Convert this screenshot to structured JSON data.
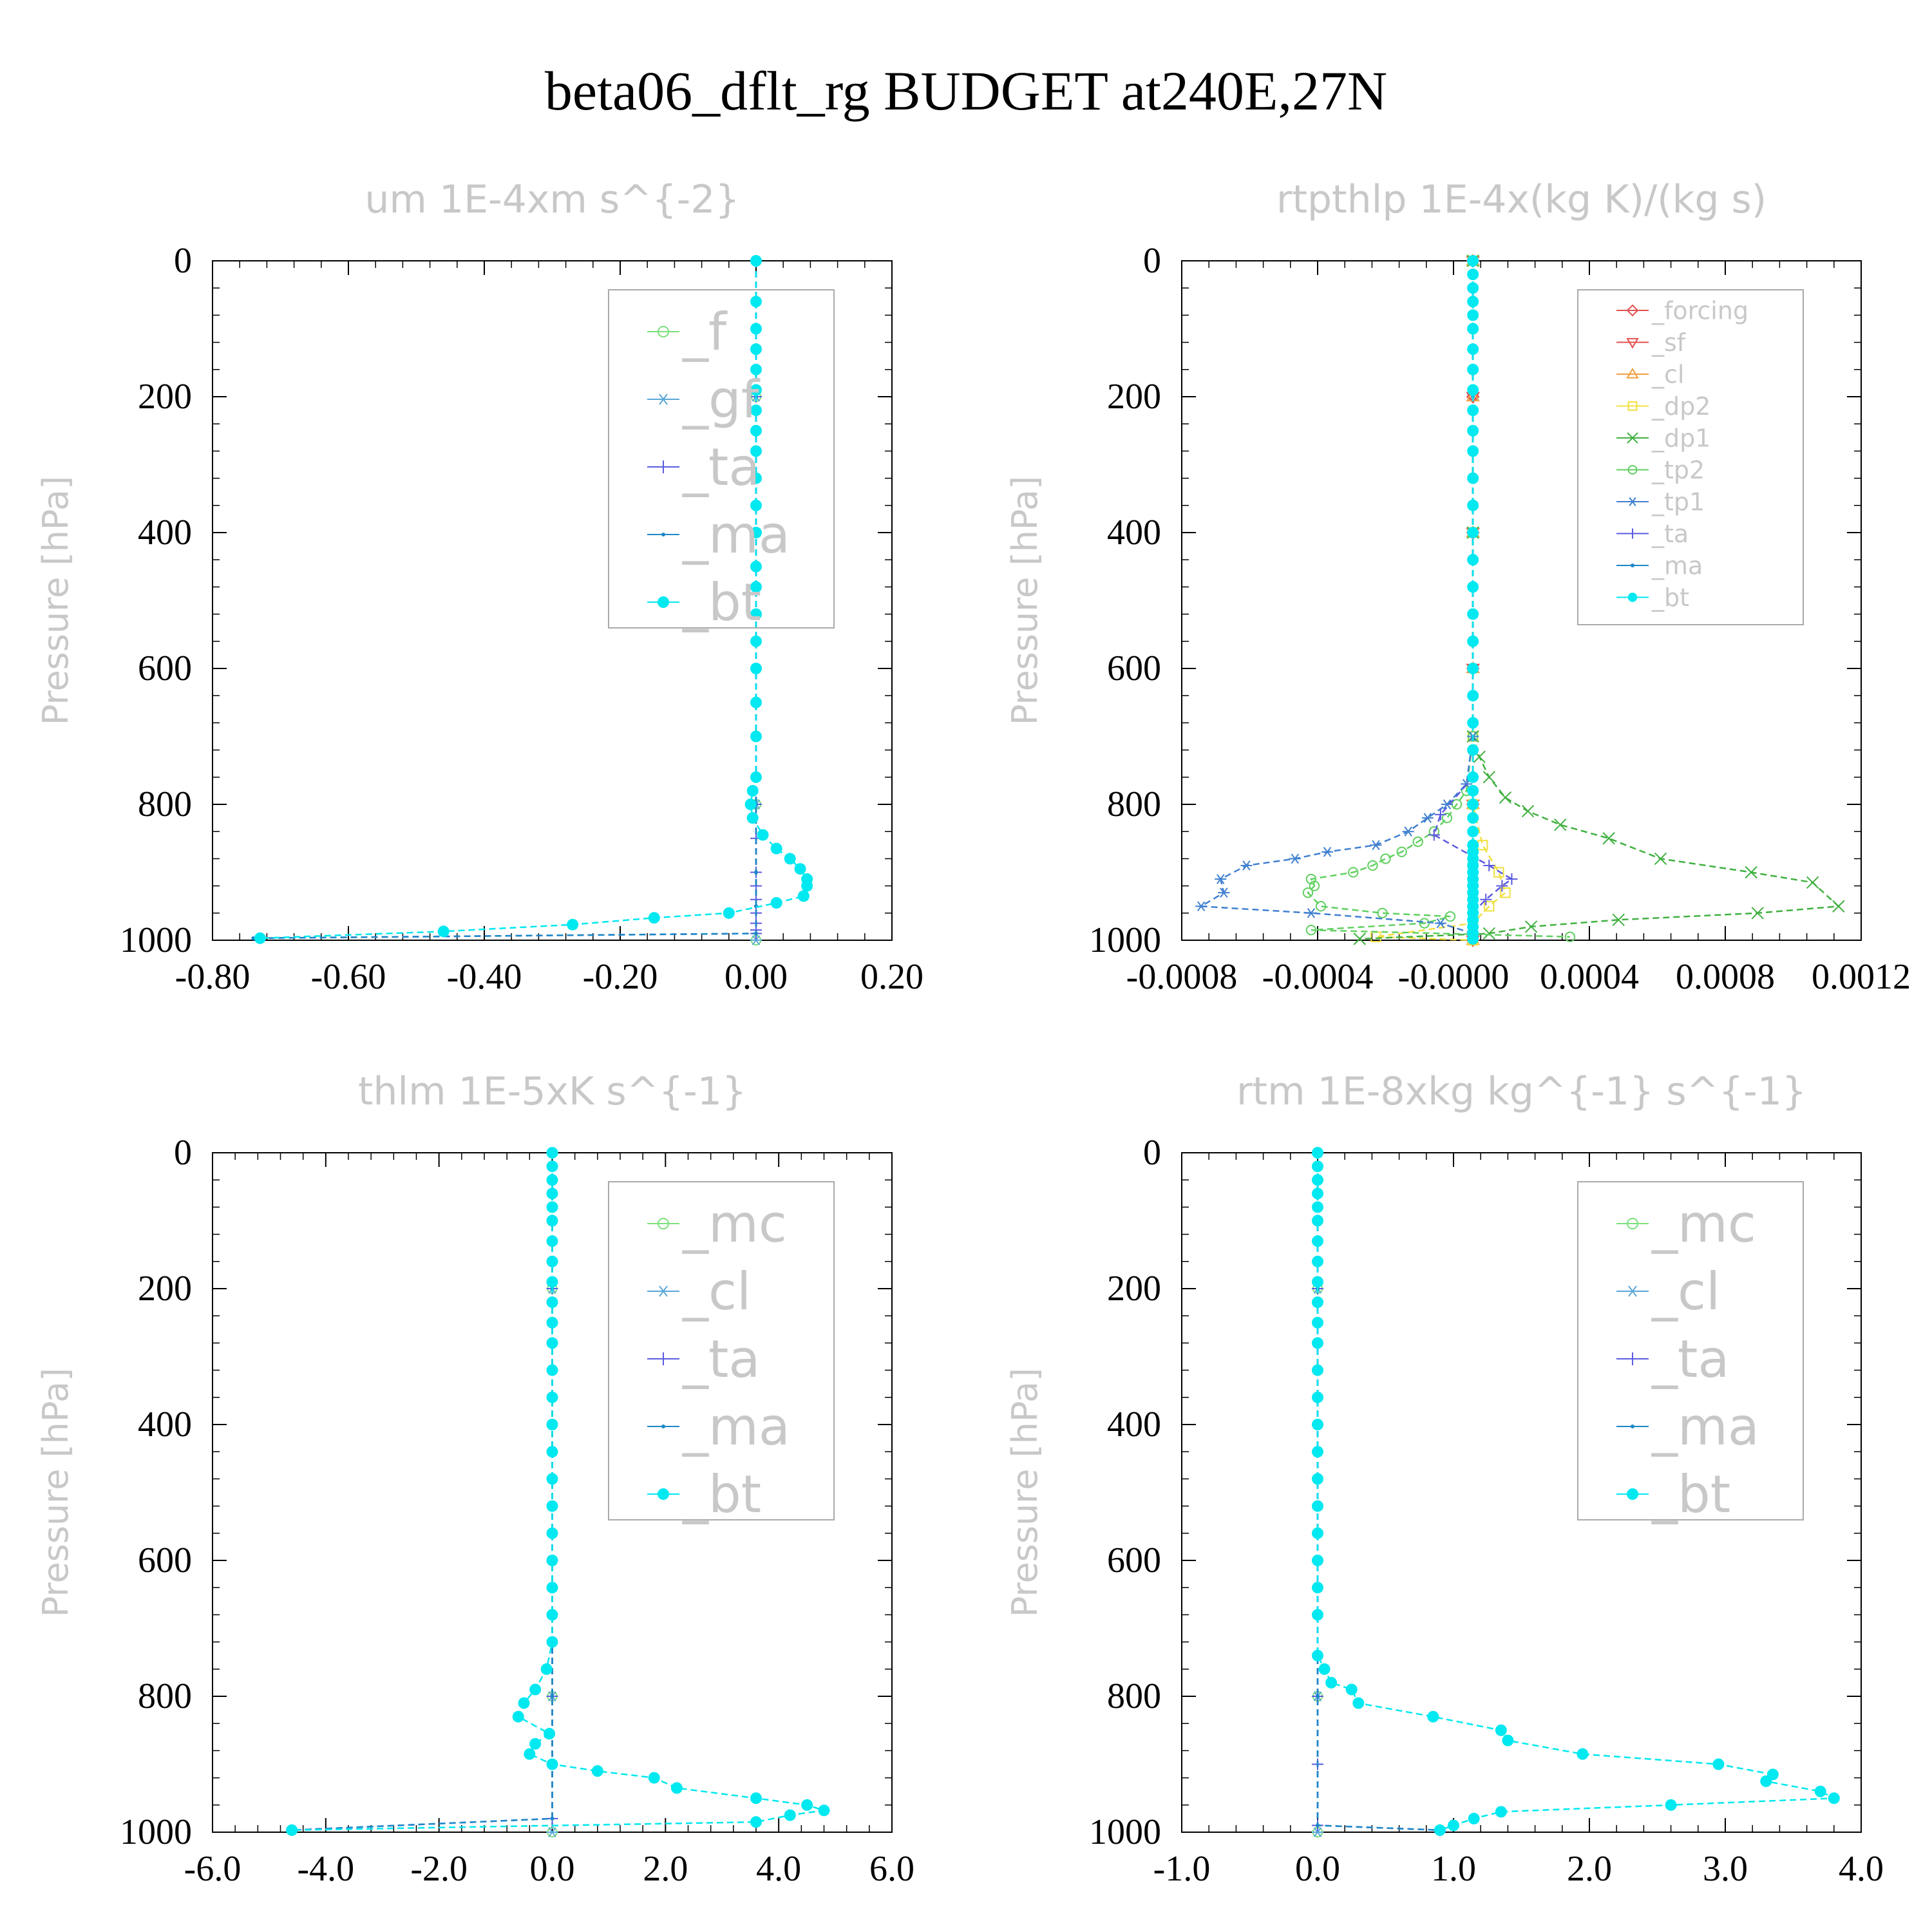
{
  "figure": {
    "title": "beta06_dflt_rg  BUDGET at240E,27N"
  },
  "chart_data": [
    {
      "type": "line",
      "title": "um  1E-4xm s^{-2}",
      "ylabel": "Pressure [hPa]",
      "xlabel": "",
      "xlim": [
        -0.8,
        0.2
      ],
      "ylim": [
        1000,
        0
      ],
      "xticks": [
        "-0.80",
        "-0.60",
        "-0.40",
        "-0.20",
        "0.00",
        "0.20"
      ],
      "yticks": [
        "0",
        "200",
        "400",
        "600",
        "800",
        "1000"
      ],
      "legend_position": "top-right",
      "legend_size": "large",
      "series": [
        {
          "name": "_f",
          "color": "#7be07b",
          "marker": "circle-open",
          "x": [
            0,
            0,
            0,
            0,
            0,
            0
          ],
          "y": [
            0,
            200,
            400,
            600,
            800,
            1000
          ]
        },
        {
          "name": "_gf",
          "color": "#5aa7d8",
          "marker": "asterisk",
          "x": [
            0,
            0,
            0,
            0,
            0,
            0
          ],
          "y": [
            0,
            200,
            400,
            600,
            800,
            1000
          ]
        },
        {
          "name": "_ta",
          "color": "#5b5be0",
          "marker": "plus",
          "x": [
            0,
            0,
            0,
            0,
            0,
            0,
            0,
            0,
            0,
            0,
            0,
            0,
            0,
            -0.73
          ],
          "y": [
            0,
            200,
            400,
            600,
            800,
            850,
            900,
            920,
            940,
            960,
            975,
            985,
            990,
            997
          ]
        },
        {
          "name": "_ma",
          "color": "#1c88c7",
          "marker": "dot",
          "x": [
            0,
            0,
            0,
            0,
            0,
            0,
            0,
            0,
            -0.74
          ],
          "y": [
            0,
            200,
            400,
            600,
            800,
            900,
            950,
            990,
            997
          ]
        },
        {
          "name": "_bt",
          "color": "#00e8f0",
          "marker": "filled-circle",
          "x": [
            0.0,
            0.0,
            0.0,
            0.0,
            0.0,
            0.0,
            0.0,
            0.0,
            0.0,
            0.0,
            0.0,
            0.0,
            0.0,
            0.0,
            0.0,
            0.0,
            0.0,
            0.0,
            0.0,
            0.0,
            -0.005,
            -0.008,
            -0.005,
            0.01,
            0.03,
            0.05,
            0.065,
            0.075,
            0.075,
            0.07,
            0.03,
            -0.04,
            -0.15,
            -0.27,
            -0.46,
            -0.73
          ],
          "y": [
            0,
            60,
            100,
            130,
            160,
            190,
            220,
            250,
            280,
            320,
            360,
            400,
            450,
            480,
            520,
            560,
            600,
            650,
            700,
            760,
            780,
            800,
            820,
            845,
            865,
            880,
            895,
            910,
            920,
            935,
            945,
            960,
            967,
            977,
            987,
            997
          ]
        }
      ]
    },
    {
      "type": "line",
      "title": "rtpthlp  1E-4x(kg K)/(kg s)",
      "ylabel": "Pressure [hPa]",
      "xlabel": "",
      "xlim": [
        -0.0009,
        0.0012
      ],
      "ylim": [
        1000,
        0
      ],
      "xticks": [
        "-0.0008",
        "-0.0004",
        "-0.0000",
        "0.0004",
        "0.0008",
        "0.0012"
      ],
      "yticks": [
        "0",
        "200",
        "400",
        "600",
        "800",
        "1000"
      ],
      "legend_position": "top-right",
      "legend_size": "small",
      "series": [
        {
          "name": "_forcing",
          "color": "#e05050",
          "marker": "diamond-open",
          "x": [
            0,
            0,
            0,
            0,
            0,
            0
          ],
          "y": [
            0,
            200,
            400,
            600,
            800,
            1000
          ]
        },
        {
          "name": "_sf",
          "color": "#e05050",
          "marker": "triangle-down",
          "x": [
            0,
            0,
            0,
            0,
            0,
            0
          ],
          "y": [
            0,
            200,
            400,
            600,
            800,
            1000
          ]
        },
        {
          "name": "_cl",
          "color": "#f0a040",
          "marker": "triangle-up",
          "x": [
            0,
            0,
            0,
            0,
            0,
            0
          ],
          "y": [
            0,
            200,
            400,
            600,
            800,
            1000
          ]
        },
        {
          "name": "_dp2",
          "color": "#f0e040",
          "marker": "square-open",
          "x": [
            0,
            0,
            0,
            0,
            3e-05,
            8e-05,
            0.0001,
            5e-05,
            0,
            -0.0003,
            0.0
          ],
          "y": [
            0,
            400,
            700,
            800,
            860,
            900,
            930,
            950,
            975,
            995,
            1000
          ]
        },
        {
          "name": "_dp1",
          "color": "#40b040",
          "marker": "x",
          "x": [
            0,
            0,
            0,
            2e-05,
            5e-05,
            0.0001,
            0.00017,
            0.00027,
            0.00042,
            0.00058,
            0.00086,
            0.00105,
            0.00113,
            0.00088,
            0.00045,
            0.00018,
            5e-05,
            -0.00035
          ],
          "y": [
            0,
            400,
            700,
            730,
            760,
            790,
            810,
            830,
            850,
            880,
            900,
            915,
            950,
            960,
            970,
            980,
            990,
            998
          ]
        },
        {
          "name": "_tp2",
          "color": "#60d060",
          "marker": "circle-open",
          "x": [
            0,
            0,
            -2e-05,
            -5e-05,
            -8e-05,
            -0.00012,
            -0.00017,
            -0.00022,
            -0.00027,
            -0.00031,
            -0.00037,
            -0.0005,
            -0.00049,
            -0.00051,
            -0.00047,
            -0.00028,
            -7e-05,
            -0.00015,
            -0.0005,
            0.0003
          ],
          "y": [
            0,
            700,
            780,
            800,
            820,
            840,
            855,
            870,
            880,
            890,
            900,
            910,
            920,
            930,
            950,
            960,
            965,
            975,
            985,
            995
          ]
        },
        {
          "name": "_tp1",
          "color": "#4080d0",
          "marker": "asterisk",
          "x": [
            0,
            0,
            -2e-05,
            -8e-05,
            -0.00014,
            -0.0002,
            -0.0003,
            -0.00045,
            -0.00055,
            -0.0007,
            -0.00078,
            -0.00077,
            -0.00084,
            -0.0005,
            -0.0001,
            0.0
          ],
          "y": [
            0,
            700,
            770,
            800,
            820,
            840,
            860,
            870,
            880,
            890,
            910,
            930,
            950,
            960,
            975,
            990
          ]
        },
        {
          "name": "_ta",
          "color": "#5b5be0",
          "marker": "plus",
          "x": [
            0,
            0,
            -0.0001,
            -0.00012,
            5e-05,
            0.00012,
            9e-05,
            4e-05,
            0.0
          ],
          "y": [
            0,
            760,
            815,
            845,
            890,
            910,
            920,
            940,
            960
          ]
        },
        {
          "name": "_ma",
          "color": "#1c88c7",
          "marker": "dot",
          "x": [
            0,
            0,
            0,
            0,
            0,
            0
          ],
          "y": [
            0,
            200,
            400,
            600,
            800,
            1000
          ]
        },
        {
          "name": "_bt",
          "color": "#00e8f0",
          "marker": "filled-circle",
          "x": [
            0,
            0,
            0,
            0,
            0,
            0,
            0,
            0,
            0,
            0,
            0,
            0,
            0,
            0,
            0,
            0,
            0,
            0,
            0,
            0,
            0,
            0,
            0,
            0,
            0,
            0,
            0,
            0,
            0,
            0,
            0,
            0,
            0,
            0,
            0,
            0,
            0,
            0,
            0,
            0,
            0,
            0,
            0
          ],
          "y": [
            0,
            20,
            40,
            60,
            80,
            100,
            130,
            160,
            190,
            220,
            250,
            280,
            320,
            360,
            400,
            440,
            480,
            520,
            560,
            600,
            640,
            680,
            720,
            760,
            780,
            800,
            820,
            840,
            860,
            870,
            880,
            890,
            900,
            910,
            920,
            930,
            940,
            950,
            960,
            970,
            980,
            990,
            998
          ]
        }
      ]
    },
    {
      "type": "line",
      "title": "thlm  1E-5xK s^{-1}",
      "ylabel": "Pressure [hPa]",
      "xlabel": "",
      "xlim": [
        -6.0,
        6.0
      ],
      "ylim": [
        1000,
        0
      ],
      "xticks": [
        "-6.0",
        "-4.0",
        "-2.0",
        "0.0",
        "2.0",
        "4.0",
        "6.0"
      ],
      "yticks": [
        "0",
        "200",
        "400",
        "600",
        "800",
        "1000"
      ],
      "legend_position": "top-right",
      "legend_size": "large",
      "series": [
        {
          "name": "_mc",
          "color": "#7be07b",
          "marker": "circle-open",
          "x": [
            0,
            0,
            0,
            0,
            0,
            0
          ],
          "y": [
            0,
            200,
            400,
            600,
            800,
            1000
          ]
        },
        {
          "name": "_cl",
          "color": "#5aa7d8",
          "marker": "asterisk",
          "x": [
            0,
            0,
            0,
            0,
            0,
            0
          ],
          "y": [
            0,
            200,
            400,
            600,
            800,
            1000
          ]
        },
        {
          "name": "_ta",
          "color": "#5b5be0",
          "marker": "plus",
          "x": [
            0,
            0,
            0,
            0,
            0,
            0,
            0,
            -4.6
          ],
          "y": [
            0,
            200,
            400,
            600,
            800,
            900,
            980,
            997
          ]
        },
        {
          "name": "_ma",
          "color": "#1c88c7",
          "marker": "dot",
          "x": [
            0,
            0,
            0,
            0,
            0,
            0,
            -4.6
          ],
          "y": [
            0,
            200,
            400,
            600,
            800,
            980,
            997
          ]
        },
        {
          "name": "_bt",
          "color": "#00e8f0",
          "marker": "filled-circle",
          "x": [
            0,
            0,
            0,
            0,
            0,
            0,
            0,
            0,
            0,
            0,
            0,
            0,
            0,
            0,
            0,
            0,
            0,
            0,
            0,
            0,
            0,
            0,
            0,
            -0.1,
            -0.3,
            -0.5,
            -0.6,
            -0.05,
            -0.3,
            -0.4,
            0,
            0.8,
            1.8,
            2.2,
            3.6,
            4.5,
            4.8,
            4.2,
            3.6,
            -4.6
          ],
          "y": [
            0,
            20,
            40,
            60,
            80,
            100,
            130,
            160,
            190,
            220,
            250,
            280,
            320,
            360,
            400,
            440,
            480,
            520,
            560,
            600,
            640,
            680,
            720,
            760,
            790,
            810,
            830,
            855,
            870,
            885,
            900,
            910,
            920,
            935,
            950,
            960,
            968,
            975,
            985,
            997
          ]
        }
      ]
    },
    {
      "type": "line",
      "title": "rtm  1E-8xkg kg^{-1} s^{-1}",
      "ylabel": "Pressure [hPa]",
      "xlabel": "",
      "xlim": [
        -1.0,
        4.0
      ],
      "ylim": [
        1000,
        0
      ],
      "xticks": [
        "-1.0",
        "0.0",
        "1.0",
        "2.0",
        "3.0",
        "4.0"
      ],
      "yticks": [
        "0",
        "200",
        "400",
        "600",
        "800",
        "1000"
      ],
      "legend_position": "top-right",
      "legend_size": "large",
      "series": [
        {
          "name": "_mc",
          "color": "#7be07b",
          "marker": "circle-open",
          "x": [
            0,
            0,
            0,
            0,
            0,
            0
          ],
          "y": [
            0,
            200,
            400,
            600,
            800,
            1000
          ]
        },
        {
          "name": "_cl",
          "color": "#5aa7d8",
          "marker": "asterisk",
          "x": [
            0,
            0,
            0,
            0,
            0,
            0
          ],
          "y": [
            0,
            200,
            400,
            600,
            800,
            1000
          ]
        },
        {
          "name": "_ta",
          "color": "#5b5be0",
          "marker": "plus",
          "x": [
            0,
            0,
            0,
            0,
            0,
            0,
            0,
            0.9
          ],
          "y": [
            0,
            200,
            400,
            600,
            800,
            900,
            990,
            997
          ]
        },
        {
          "name": "_ma",
          "color": "#1c88c7",
          "marker": "dot",
          "x": [
            0,
            0,
            0,
            0,
            0,
            0,
            0.9
          ],
          "y": [
            0,
            200,
            400,
            600,
            800,
            990,
            997
          ]
        },
        {
          "name": "_bt",
          "color": "#00e8f0",
          "marker": "filled-circle",
          "x": [
            0,
            0,
            0,
            0,
            0,
            0,
            0,
            0,
            0,
            0,
            0,
            0,
            0,
            0,
            0,
            0,
            0,
            0,
            0,
            0,
            0,
            0,
            0,
            0.05,
            0.1,
            0.25,
            0.3,
            0.85,
            1.35,
            1.4,
            1.95,
            2.95,
            3.35,
            3.3,
            3.7,
            3.8,
            2.6,
            1.35,
            1.15,
            1.0,
            0.9
          ],
          "y": [
            0,
            20,
            40,
            60,
            80,
            100,
            130,
            160,
            190,
            220,
            250,
            280,
            320,
            360,
            400,
            440,
            480,
            520,
            560,
            600,
            640,
            680,
            740,
            760,
            780,
            790,
            810,
            830,
            850,
            865,
            885,
            900,
            915,
            925,
            940,
            950,
            960,
            970,
            980,
            990,
            997
          ]
        }
      ]
    }
  ]
}
